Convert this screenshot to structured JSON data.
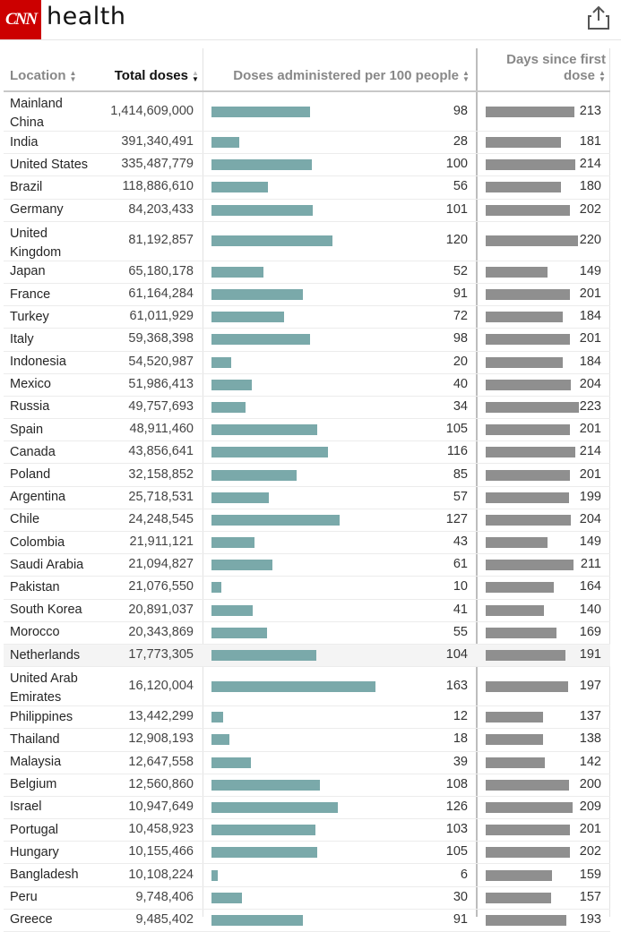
{
  "header": {
    "logo": "CNN",
    "section": "health"
  },
  "table": {
    "columns": {
      "location": "Location",
      "total": "Total doses",
      "per100": "Doses administered per 100 people",
      "days": "Days since first dose"
    },
    "rows": [
      {
        "location": "Mainland China",
        "total": "1,414,609,000",
        "per100": 98,
        "days": 213
      },
      {
        "location": "India",
        "total": "391,340,491",
        "per100": 28,
        "days": 181
      },
      {
        "location": "United States",
        "total": "335,487,779",
        "per100": 100,
        "days": 214
      },
      {
        "location": "Brazil",
        "total": "118,886,610",
        "per100": 56,
        "days": 180
      },
      {
        "location": "Germany",
        "total": "84,203,433",
        "per100": 101,
        "days": 202
      },
      {
        "location": "United Kingdom",
        "total": "81,192,857",
        "per100": 120,
        "days": 220
      },
      {
        "location": "Japan",
        "total": "65,180,178",
        "per100": 52,
        "days": 149
      },
      {
        "location": "France",
        "total": "61,164,284",
        "per100": 91,
        "days": 201
      },
      {
        "location": "Turkey",
        "total": "61,011,929",
        "per100": 72,
        "days": 184
      },
      {
        "location": "Italy",
        "total": "59,368,398",
        "per100": 98,
        "days": 201
      },
      {
        "location": "Indonesia",
        "total": "54,520,987",
        "per100": 20,
        "days": 184
      },
      {
        "location": "Mexico",
        "total": "51,986,413",
        "per100": 40,
        "days": 204
      },
      {
        "location": "Russia",
        "total": "49,757,693",
        "per100": 34,
        "days": 223
      },
      {
        "location": "Spain",
        "total": "48,911,460",
        "per100": 105,
        "days": 201
      },
      {
        "location": "Canada",
        "total": "43,856,641",
        "per100": 116,
        "days": 214
      },
      {
        "location": "Poland",
        "total": "32,158,852",
        "per100": 85,
        "days": 201
      },
      {
        "location": "Argentina",
        "total": "25,718,531",
        "per100": 57,
        "days": 199
      },
      {
        "location": "Chile",
        "total": "24,248,545",
        "per100": 127,
        "days": 204
      },
      {
        "location": "Colombia",
        "total": "21,911,121",
        "per100": 43,
        "days": 149
      },
      {
        "location": "Saudi Arabia",
        "total": "21,094,827",
        "per100": 61,
        "days": 211
      },
      {
        "location": "Pakistan",
        "total": "21,076,550",
        "per100": 10,
        "days": 164
      },
      {
        "location": "South Korea",
        "total": "20,891,037",
        "per100": 41,
        "days": 140
      },
      {
        "location": "Morocco",
        "total": "20,343,869",
        "per100": 55,
        "days": 169
      },
      {
        "location": "Netherlands",
        "total": "17,773,305",
        "per100": 104,
        "days": 191
      },
      {
        "location": "United Arab Emirates",
        "total": "16,120,004",
        "per100": 163,
        "days": 197
      },
      {
        "location": "Philippines",
        "total": "13,442,299",
        "per100": 12,
        "days": 137
      },
      {
        "location": "Thailand",
        "total": "12,908,193",
        "per100": 18,
        "days": 138
      },
      {
        "location": "Malaysia",
        "total": "12,647,558",
        "per100": 39,
        "days": 142
      },
      {
        "location": "Belgium",
        "total": "12,560,860",
        "per100": 108,
        "days": 200
      },
      {
        "location": "Israel",
        "total": "10,947,649",
        "per100": 126,
        "days": 209
      },
      {
        "location": "Portugal",
        "total": "10,458,923",
        "per100": 103,
        "days": 201
      },
      {
        "location": "Hungary",
        "total": "10,155,466",
        "per100": 105,
        "days": 202
      },
      {
        "location": "Bangladesh",
        "total": "10,108,224",
        "per100": 6,
        "days": 159
      },
      {
        "location": "Peru",
        "total": "9,748,406",
        "per100": 30,
        "days": 157
      },
      {
        "location": "Greece",
        "total": "9,485,402",
        "per100": 91,
        "days": 193
      }
    ]
  },
  "colors": {
    "brand": "#cc0000",
    "per100_bar": "#7aa9aa",
    "days_bar": "#8f8f8f"
  }
}
